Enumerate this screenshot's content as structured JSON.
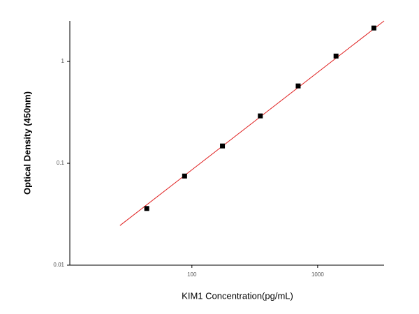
{
  "chart_data": {
    "type": "scatter",
    "x_label": "KIM1 Concentration(pg/mL)",
    "y_label": "Optical Density (450nm)",
    "x": [
      43.75,
      87.5,
      175,
      350,
      700,
      1400,
      2800
    ],
    "values": [
      0.036,
      0.075,
      0.148,
      0.292,
      0.575,
      1.13,
      2.13
    ],
    "color": "#000000",
    "fit_line": {
      "x": [
        26.8,
        3375
      ],
      "y": [
        0.0245,
        2.5
      ],
      "color": "#e02020"
    },
    "xlim": [
      10.7,
      3375
    ],
    "ylim": [
      0.01,
      2.5
    ],
    "xticks": [
      100,
      1000
    ],
    "yticks": [
      0.01,
      0.1,
      1
    ],
    "xscale": "log",
    "yscale": "log",
    "grid": false
  }
}
